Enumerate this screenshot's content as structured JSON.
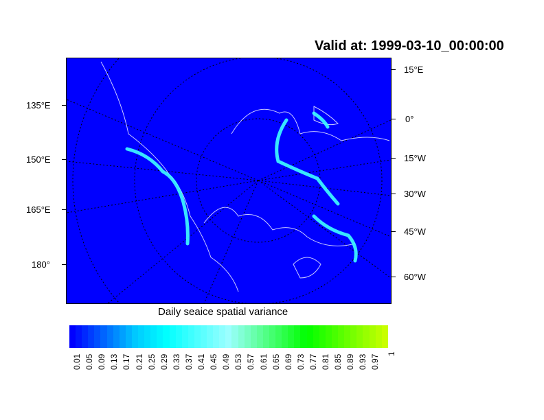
{
  "title": "Valid at: 1999-03-10_00:00:00",
  "map": {
    "projection": "polar-stereographic",
    "background_color": "#0000ff",
    "coastline_color": "#c8c8ff",
    "left_labels": [
      "135°E",
      "150°E",
      "165°E",
      "180°"
    ],
    "right_labels": [
      "15°E",
      "0°",
      "15°W",
      "30°W",
      "45°W",
      "60°W"
    ]
  },
  "colorbar": {
    "title": "Daily seaice spatial variance",
    "labels": [
      "0.01",
      "0.05",
      "0.09",
      "0.13",
      "0.17",
      "0.21",
      "0.25",
      "0.29",
      "0.33",
      "0.37",
      "0.41",
      "0.45",
      "0.49",
      "0.53",
      "0.57",
      "0.61",
      "0.65",
      "0.69",
      "0.73",
      "0.77",
      "0.81",
      "0.85",
      "0.89",
      "0.93",
      "0.97",
      "1"
    ],
    "color_stops": [
      "#0000ff",
      "#00c8ff",
      "#00ffff",
      "#9bffff",
      "#00ff00",
      "#c8ff00"
    ]
  }
}
